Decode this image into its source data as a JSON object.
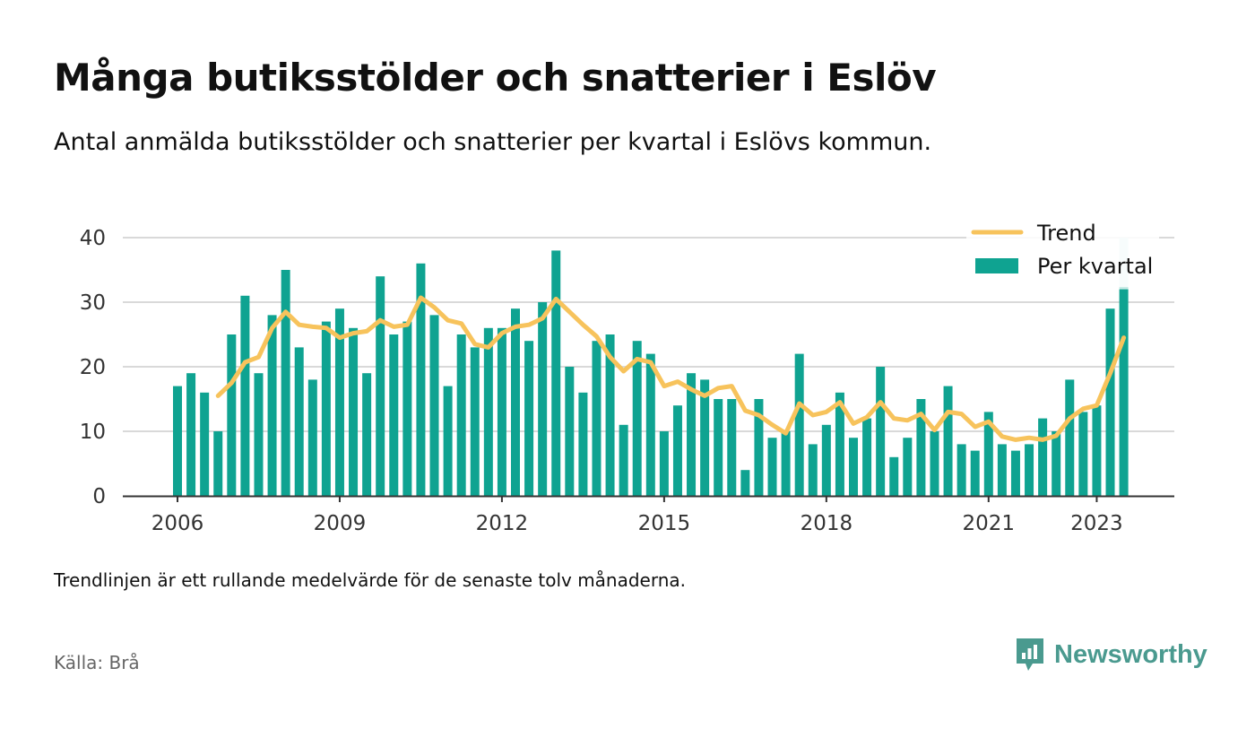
{
  "title": "Många butiksstölder och snatterier i Eslöv",
  "subtitle": "Antal anmälda butiksstölder och snatterier per kvartal i Eslövs kommun.",
  "note": "Trendlinjen är ett rullande medelvärde för de senaste tolv månaderna.",
  "source": "Källa: Brå",
  "brand": "Newsworthy",
  "colors": {
    "bar": "#0fa391",
    "bar_highlight": "#c8ebe6",
    "trend": "#f7c35c",
    "grid": "#d9d9d9",
    "axis": "#333333",
    "brand": "#4a9a8f"
  },
  "chart_data": {
    "type": "bar",
    "ylim": [
      0,
      40
    ],
    "yticks": [
      0,
      10,
      20,
      30,
      40
    ],
    "xticks": [
      "2006",
      "2009",
      "2012",
      "2015",
      "2018",
      "2021",
      "2023"
    ],
    "legend": {
      "position": "top-right",
      "items": [
        "Trend",
        "Per kvartal"
      ]
    },
    "grid": true,
    "series": [
      {
        "name": "Per kvartal",
        "type": "bar",
        "values": [
          17,
          19,
          16,
          10,
          25,
          31,
          19,
          28,
          35,
          23,
          18,
          27,
          29,
          26,
          19,
          34,
          25,
          27,
          36,
          28,
          17,
          25,
          23,
          26,
          26,
          29,
          24,
          30,
          38,
          20,
          16,
          24,
          25,
          11,
          24,
          22,
          10,
          14,
          19,
          18,
          15,
          15,
          4,
          15,
          9,
          10,
          22,
          8,
          11,
          16,
          9,
          12,
          20,
          6,
          9,
          15,
          10,
          17,
          8,
          7,
          13,
          8,
          7,
          8,
          12,
          10,
          18,
          13,
          14,
          29,
          32
        ],
        "highlight_last_max": 40
      },
      {
        "name": "Trend",
        "type": "line",
        "start_index": 3,
        "values": [
          15.5,
          17.5,
          20.7,
          21.5,
          26.0,
          28.5,
          26.5,
          26.2,
          26.0,
          24.5,
          25.2,
          25.5,
          27.2,
          26.2,
          26.5,
          30.7,
          29.2,
          27.2,
          26.7,
          23.5,
          23.0,
          25.2,
          26.2,
          26.5,
          27.5,
          30.5,
          28.5,
          26.5,
          24.7,
          21.5,
          19.3,
          21.2,
          20.7,
          17.0,
          17.7,
          16.5,
          15.5,
          16.7,
          17.0,
          13.2,
          12.5,
          11.0,
          9.7,
          14.3,
          12.5,
          13.0,
          14.5,
          11.2,
          12.2,
          14.5,
          12.0,
          11.7,
          12.7,
          10.2,
          13.0,
          12.7,
          10.7,
          11.5,
          9.2,
          8.7,
          9.0,
          8.7,
          9.3,
          12.0,
          13.5,
          14.0,
          19.0,
          24.5
        ]
      }
    ]
  }
}
